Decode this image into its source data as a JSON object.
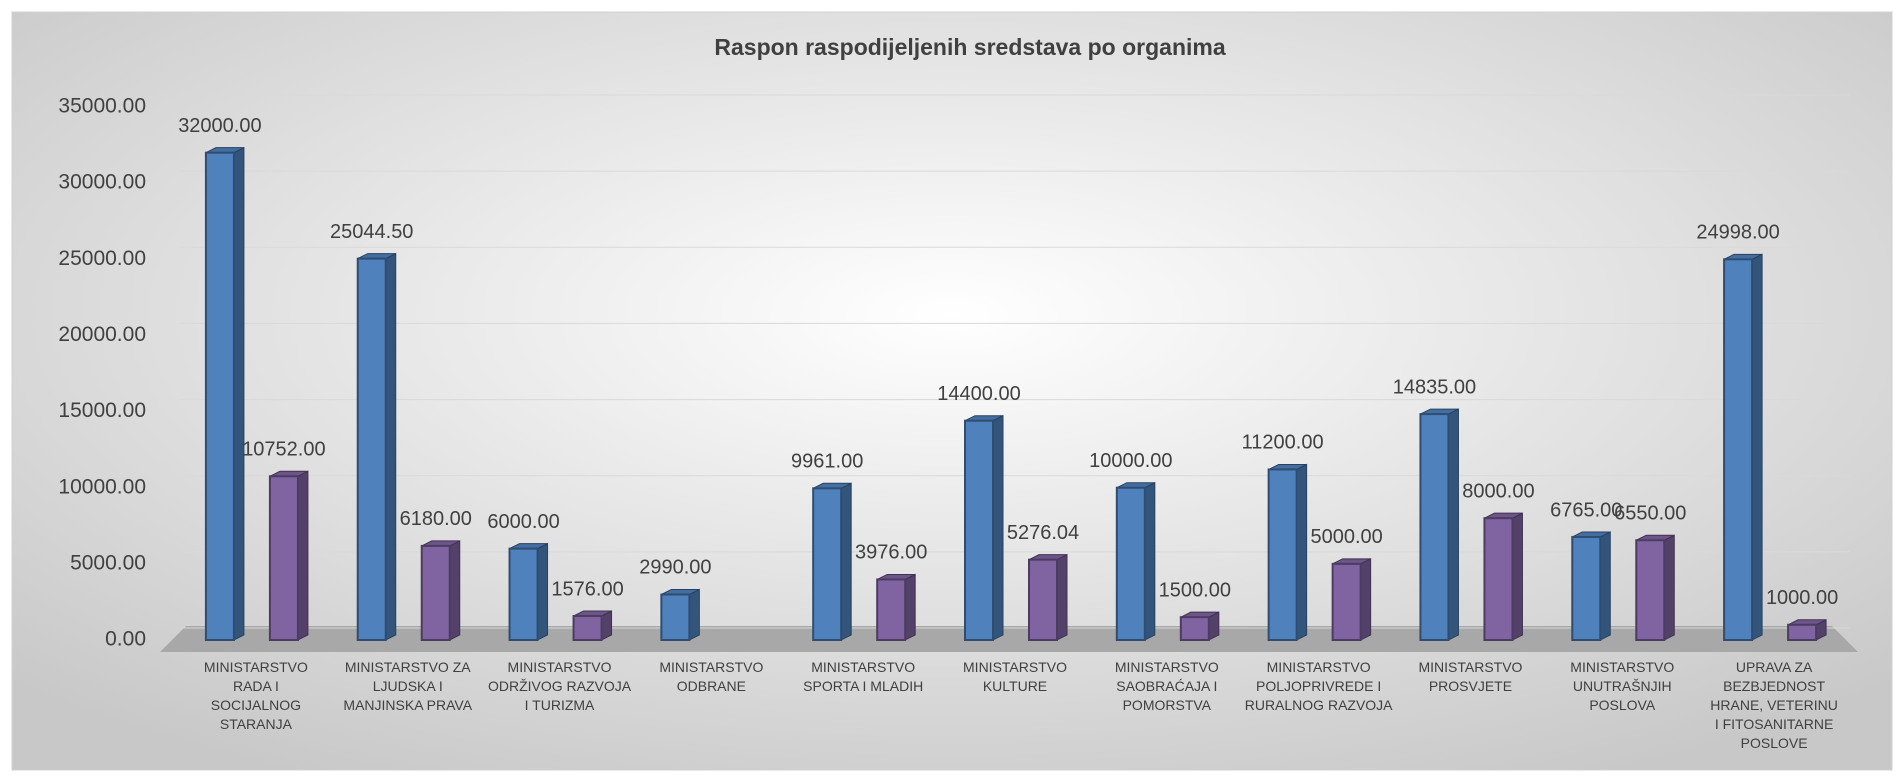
{
  "chart_data": {
    "type": "bar3d",
    "title": "Raspon raspodijeljenih sredstava po organima",
    "categories": [
      "MINISTARSTVO RADA I SOCIJALNOG STARANJA",
      "MINISTARSTVO ZA LJUDSKA I MANJINSKA PRAVA",
      "MINISTARSTVO ODRŽIVOG RAZVOJA I TURIZMA",
      "MINISTARSTVO ODBRANE",
      "MINISTARSTVO SPORTA I MLADIH",
      "MINISTARSTVO KULTURE",
      "MINISTARSTVO SAOBRAĆAJA I POMORSTVA",
      "MINISTARSTVO POLJOPRIVREDE I RURALNOG RAZVOJA",
      "MINISTARSTVO PROSVJETE",
      "MINISTARSTVO UNUTRAŠNJIH POSLOVA",
      "UPRAVA ZA BEZBJEDNOST HRANE, VETERINU I FITOSANITARNE POSLOVE"
    ],
    "series": [
      {
        "color": "#4f81bd",
        "values": [
          32000,
          25044.5,
          6000,
          2990,
          9961,
          14400,
          10000,
          11200,
          14835,
          6765,
          24998
        ],
        "value_labels": [
          "32000.00",
          "25044.50",
          "6000.00",
          "2990.00",
          "9961.00",
          "14400.00",
          "10000.00",
          "11200.00",
          "14835.00",
          "6765.00",
          "24998.00"
        ]
      },
      {
        "color": "#8064a2",
        "values": [
          10752,
          6180,
          1576,
          null,
          3976,
          5276.04,
          1500,
          5000,
          8000,
          6550,
          1000
        ],
        "value_labels": [
          "10752.00",
          "6180.00",
          "1576.00",
          null,
          "3976.00",
          "5276.04",
          "1500.00",
          "5000.00",
          "8000.00",
          "6550.00",
          "1000.00"
        ]
      }
    ],
    "ylim": [
      0,
      35000
    ],
    "yticks": [
      {
        "value": 0,
        "label": "0.00"
      },
      {
        "value": 5000,
        "label": "5000.00"
      },
      {
        "value": 10000,
        "label": "10000.00"
      },
      {
        "value": 15000,
        "label": "15000.00"
      },
      {
        "value": 20000,
        "label": "20000.00"
      },
      {
        "value": 25000,
        "label": "25000.00"
      },
      {
        "value": 30000,
        "label": "30000.00"
      },
      {
        "value": 35000,
        "label": "35000.00"
      }
    ],
    "grid": true
  }
}
